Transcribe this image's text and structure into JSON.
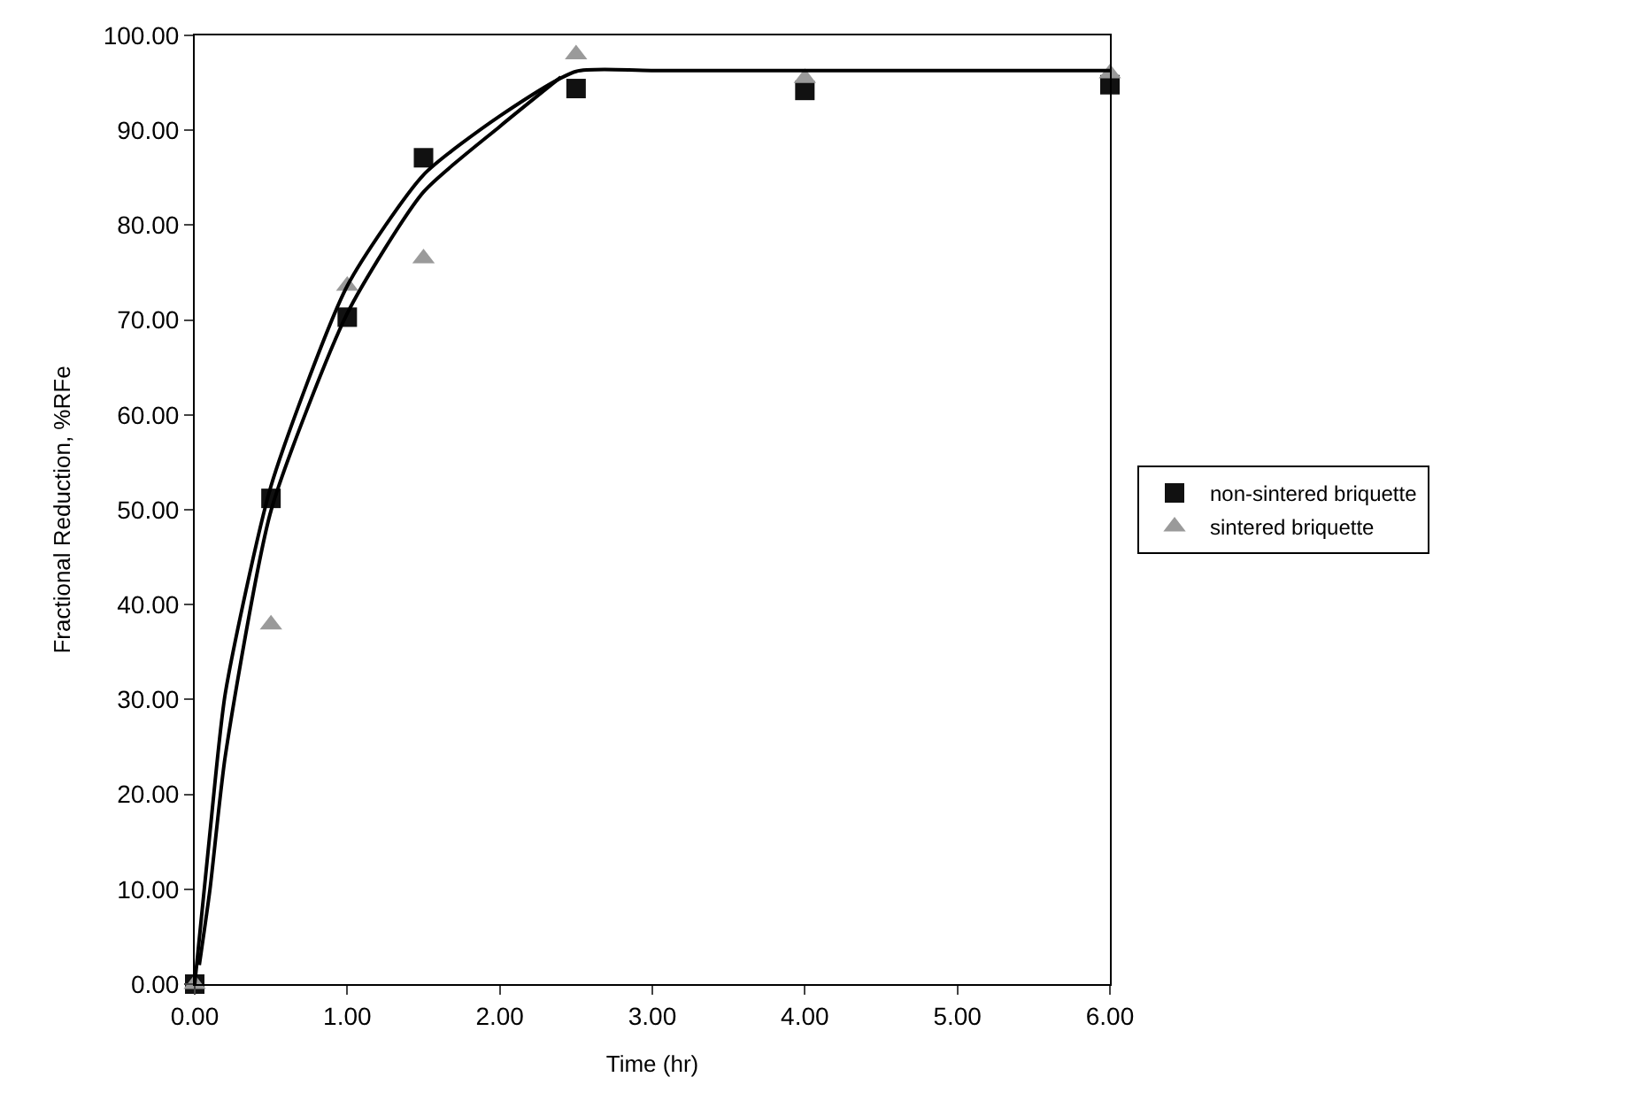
{
  "chart_data": {
    "type": "scatter",
    "xlabel": "Time (hr)",
    "ylabel": "Fractional Reduction, %RFe",
    "x": [
      0,
      0.5,
      1.0,
      1.5,
      2.5,
      4.0,
      6.0
    ],
    "series": [
      {
        "name": "non-sintered briquette",
        "color": "#111111",
        "marker": "square",
        "values": [
          0,
          51.2,
          70.3,
          87.1,
          94.4,
          94.2,
          94.8
        ]
      },
      {
        "name": "sintered briquette",
        "color": "#9a9a9a",
        "marker": "triangle",
        "values": [
          0,
          37.9,
          73.6,
          76.5,
          98.0,
          95.5,
          96.0
        ]
      },
      {
        "type": "line",
        "color": "#000000",
        "x": [
          0,
          0.1,
          0.2,
          0.5,
          1.0,
          1.5,
          2.0,
          2.5,
          3.0,
          6.0
        ],
        "values": [
          0,
          16,
          30.6,
          52.5,
          73.6,
          85.3,
          91.5,
          96.2,
          96.3,
          96.3
        ]
      },
      {
        "type": "line",
        "color": "#000000",
        "x": [
          0.03,
          0.1,
          0.2,
          0.5,
          1.0,
          1.5,
          2.0,
          2.4
        ],
        "values": [
          2,
          10,
          24,
          49.9,
          70.7,
          83.5,
          90.4,
          95.6
        ]
      }
    ],
    "xlim": [
      0,
      6
    ],
    "xticks": [
      {
        "value": 0,
        "label": "0.00"
      },
      {
        "value": 1,
        "label": "1.00"
      },
      {
        "value": 2,
        "label": "2.00"
      },
      {
        "value": 3,
        "label": "3.00"
      },
      {
        "value": 4,
        "label": "4.00"
      },
      {
        "value": 5,
        "label": "5.00"
      },
      {
        "value": 6,
        "label": "6.00"
      }
    ],
    "ylim": [
      0,
      100
    ],
    "yticks": [
      {
        "value": 0,
        "label": "0.00"
      },
      {
        "value": 10,
        "label": "10.00"
      },
      {
        "value": 20,
        "label": "20.00"
      },
      {
        "value": 30,
        "label": "30.00"
      },
      {
        "value": 40,
        "label": "40.00"
      },
      {
        "value": 50,
        "label": "50.00"
      },
      {
        "value": 60,
        "label": "60.00"
      },
      {
        "value": 70,
        "label": "70.00"
      },
      {
        "value": 80,
        "label": "80.00"
      },
      {
        "value": 90,
        "label": "90.00"
      },
      {
        "value": 100,
        "label": "100.00"
      }
    ],
    "grid": false,
    "legend": "right",
    "line_style": "solid"
  }
}
